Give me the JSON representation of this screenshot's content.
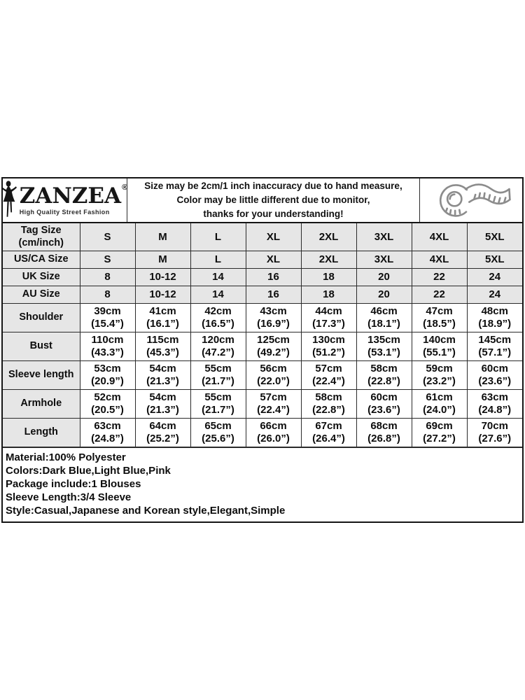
{
  "brand": {
    "name": "ZANZEA",
    "registered_mark": "®",
    "tagline": "High Quality Street Fashion"
  },
  "notice": {
    "line1": "Size may be 2cm/1 inch inaccuracy due to hand measure,",
    "line2": "Color may be little different due to monitor,",
    "line3": "thanks for your understanding!"
  },
  "size_table": {
    "rows": [
      {
        "label": "Tag Size\n(cm/inch)",
        "shaded": true,
        "values": [
          "S",
          "M",
          "L",
          "XL",
          "2XL",
          "3XL",
          "4XL",
          "5XL"
        ]
      },
      {
        "label": "US/CA Size",
        "shaded": true,
        "values": [
          "S",
          "M",
          "L",
          "XL",
          "2XL",
          "3XL",
          "4XL",
          "5XL"
        ]
      },
      {
        "label": "UK Size",
        "shaded": true,
        "values": [
          "8",
          "10-12",
          "14",
          "16",
          "18",
          "20",
          "22",
          "24"
        ]
      },
      {
        "label": "AU Size",
        "shaded": true,
        "values": [
          "8",
          "10-12",
          "14",
          "16",
          "18",
          "20",
          "22",
          "24"
        ]
      },
      {
        "label": "Shoulder",
        "shaded": false,
        "values": [
          "39cm\n(15.4”)",
          "41cm\n(16.1”)",
          "42cm\n(16.5”)",
          "43cm\n(16.9”)",
          "44cm\n(17.3”)",
          "46cm\n(18.1”)",
          "47cm\n(18.5”)",
          "48cm\n(18.9”)"
        ]
      },
      {
        "label": "Bust",
        "shaded": false,
        "values": [
          "110cm\n(43.3”)",
          "115cm\n(45.3”)",
          "120cm\n(47.2”)",
          "125cm\n(49.2”)",
          "130cm\n(51.2”)",
          "135cm\n(53.1”)",
          "140cm\n(55.1”)",
          "145cm\n(57.1”)"
        ]
      },
      {
        "label": "Sleeve length",
        "shaded": false,
        "values": [
          "53cm\n(20.9”)",
          "54cm\n(21.3”)",
          "55cm\n(21.7”)",
          "56cm\n(22.0”)",
          "57cm\n(22.4”)",
          "58cm\n(22.8”)",
          "59cm\n(23.2”)",
          "60cm\n(23.6”)"
        ]
      },
      {
        "label": "Armhole",
        "shaded": false,
        "values": [
          "52cm\n(20.5”)",
          "54cm\n(21.3”)",
          "55cm\n(21.7”)",
          "57cm\n(22.4”)",
          "58cm\n(22.8”)",
          "60cm\n(23.6”)",
          "61cm\n(24.0”)",
          "63cm\n(24.8”)"
        ]
      },
      {
        "label": "Length",
        "shaded": false,
        "values": [
          "63cm\n(24.8”)",
          "64cm\n(25.2”)",
          "65cm\n(25.6”)",
          "66cm\n(26.0”)",
          "67cm\n(26.4”)",
          "68cm\n(26.8”)",
          "69cm\n(27.2”)",
          "70cm\n(27.6”)"
        ]
      }
    ]
  },
  "product_info": {
    "lines": [
      "Material:100% Polyester",
      "Colors:Dark Blue,Light Blue,Pink",
      "Package include:1 Blouses",
      "Sleeve Length:3/4 Sleeve",
      "Style:Casual,Japanese and Korean style,Elegant,Simple"
    ]
  },
  "colors": {
    "shaded_cell": "#e6e6e6",
    "border": "#2a2a2a",
    "outer_border": "#151515",
    "background": "#ffffff",
    "tape_icon_stroke": "#8c8c8c"
  }
}
